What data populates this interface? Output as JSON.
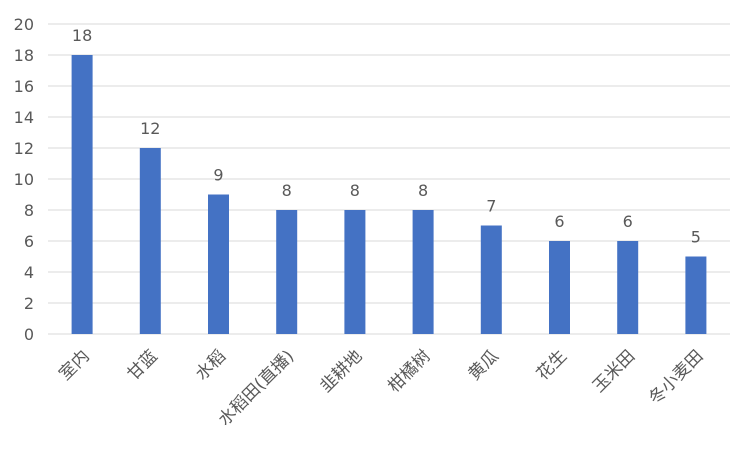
{
  "chart_data": {
    "type": "bar",
    "categories": [
      "室内",
      "甘蓝",
      "水稻",
      "水稻田(直播)",
      "韭耕地",
      "柑橘树",
      "黄瓜",
      "花生",
      "玉米田",
      "冬小麦田"
    ],
    "values": [
      18,
      12,
      9,
      8,
      8,
      8,
      7,
      6,
      6,
      5
    ],
    "data_labels": [
      "18",
      "12",
      "9",
      "8",
      "8",
      "8",
      "7",
      "6",
      "6",
      "5"
    ],
    "y_ticks": [
      "0",
      "2",
      "4",
      "6",
      "8",
      "10",
      "12",
      "14",
      "16",
      "18",
      "20"
    ],
    "ylim": [
      0,
      20
    ],
    "grid": true,
    "legend": "none",
    "bar_color": "#4472C4",
    "grid_color": "#d9d9d9",
    "text_color": "#595959"
  }
}
